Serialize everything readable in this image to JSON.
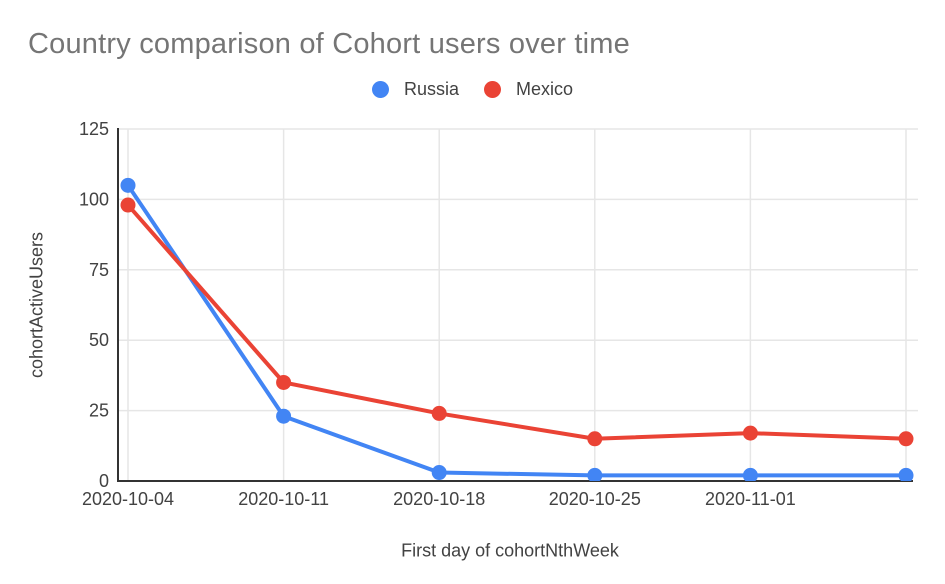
{
  "chart_data": {
    "type": "line",
    "title": "Country comparison of Cohort users over time",
    "xlabel": "First day of cohortNthWeek",
    "ylabel": "cohortActiveUsers",
    "x_tick_labels": [
      "2020-10-04",
      "2020-10-11",
      "2020-10-18",
      "2020-10-25",
      "2020-11-01"
    ],
    "num_points": 6,
    "y_ticks": [
      0,
      25,
      50,
      75,
      100,
      125
    ],
    "ylim": [
      0,
      125
    ],
    "grid": true,
    "legend_position": "top-center",
    "series": [
      {
        "name": "Russia",
        "color": "#4285F4",
        "values": [
          105,
          23,
          3,
          2,
          2,
          2
        ]
      },
      {
        "name": "Mexico",
        "color": "#EA4335",
        "values": [
          98,
          35,
          24,
          15,
          17,
          15
        ]
      }
    ],
    "colors": {
      "gridline": "#e6e6e6",
      "axis": "#333333",
      "title_text": "#757575",
      "tick_text": "#424242",
      "background": "#ffffff"
    }
  }
}
